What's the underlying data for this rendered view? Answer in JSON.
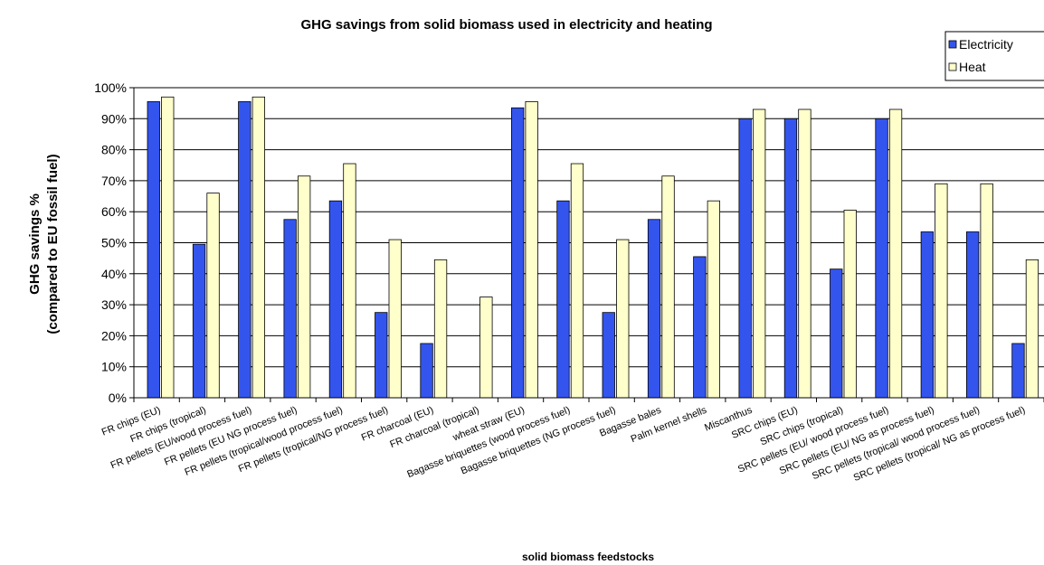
{
  "chart_data": {
    "type": "bar",
    "title": "GHG savings from solid biomass used in electricity and heating",
    "ylabel_line1": "GHG savings %",
    "ylabel_line2": "(compared to EU fossil fuel)",
    "xlabel": "solid biomass feedstocks",
    "ylim": [
      0,
      100
    ],
    "yticks": [
      "0%",
      "10%",
      "20%",
      "30%",
      "40%",
      "50%",
      "60%",
      "70%",
      "80%",
      "90%",
      "100%"
    ],
    "grid": true,
    "legend_position": "top-right",
    "categories": [
      "FR chips (EU)",
      "FR chips (tropical)",
      "FR pellets (EU/wood process fuel)",
      "FR pellets (EU NG process fuel)",
      "FR pellets (tropical/wood process fuel)",
      "FR pellets (tropical/NG process fuel)",
      "FR charcoal (EU)",
      "FR charcoal (tropical)",
      "wheat straw (EU)",
      "Bagasse briquettes (wood process fuel)",
      "Bagasse briquettes (NG process fuel)",
      "Bagasse bales",
      "Palm kernel shells",
      "Miscanthus",
      "SRC chips (EU)",
      "SRC chips (tropical)",
      "SRC pellets (EU/ wood process fuel)",
      "SRC pellets (EU/ NG as process fuel)",
      "SRC pellets (tropical/ wood process fuel)",
      "SRC pellets (tropical/ NG as process fuel)"
    ],
    "series": [
      {
        "name": "Electricity",
        "color": "#3355EE",
        "values": [
          95.5,
          49.5,
          95.5,
          57.5,
          63.5,
          27.5,
          17.5,
          0,
          93.5,
          63.5,
          27.5,
          57.5,
          45.5,
          90,
          90,
          41.5,
          90,
          53.5,
          53.5,
          17.5
        ]
      },
      {
        "name": "Heat",
        "color": "#FFFFCC",
        "values": [
          97,
          66,
          97,
          71.5,
          75.5,
          51,
          44.5,
          32.5,
          95.5,
          75.5,
          51,
          71.5,
          63.5,
          93,
          93,
          60.5,
          93,
          69,
          69,
          44.5
        ]
      }
    ]
  }
}
